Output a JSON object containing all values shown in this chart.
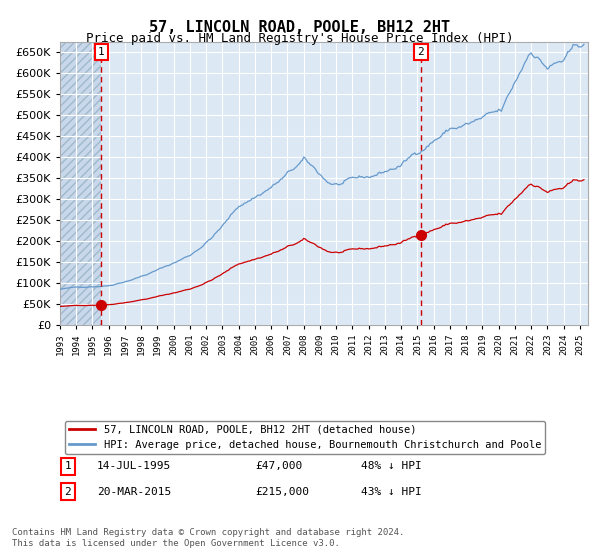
{
  "title": "57, LINCOLN ROAD, POOLE, BH12 2HT",
  "subtitle": "Price paid vs. HM Land Registry's House Price Index (HPI)",
  "ylim": [
    0,
    675000
  ],
  "ytick_vals": [
    0,
    50000,
    100000,
    150000,
    200000,
    250000,
    300000,
    350000,
    400000,
    450000,
    500000,
    550000,
    600000,
    650000
  ],
  "ytick_labels": [
    "£0",
    "£50K",
    "£100K",
    "£150K",
    "£200K",
    "£250K",
    "£300K",
    "£350K",
    "£400K",
    "£450K",
    "£500K",
    "£550K",
    "£600K",
    "£650K"
  ],
  "background_color": "#dce9f5",
  "grid_color": "#ffffff",
  "sale1_date": 1995.54,
  "sale1_price": 47000,
  "sale2_date": 2015.22,
  "sale2_price": 215000,
  "legend_line1": "57, LINCOLN ROAD, POOLE, BH12 2HT (detached house)",
  "legend_line2": "HPI: Average price, detached house, Bournemouth Christchurch and Poole",
  "table_row1": [
    "1",
    "14-JUL-1995",
    "£47,000",
    "48% ↓ HPI"
  ],
  "table_row2": [
    "2",
    "20-MAR-2015",
    "£215,000",
    "43% ↓ HPI"
  ],
  "footnote": "Contains HM Land Registry data © Crown copyright and database right 2024.\nThis data is licensed under the Open Government Licence v3.0.",
  "line_red_color": "#cc0000",
  "line_blue_color": "#6699cc",
  "marker_color": "#cc0000",
  "dashed_line_color": "#cc0000"
}
